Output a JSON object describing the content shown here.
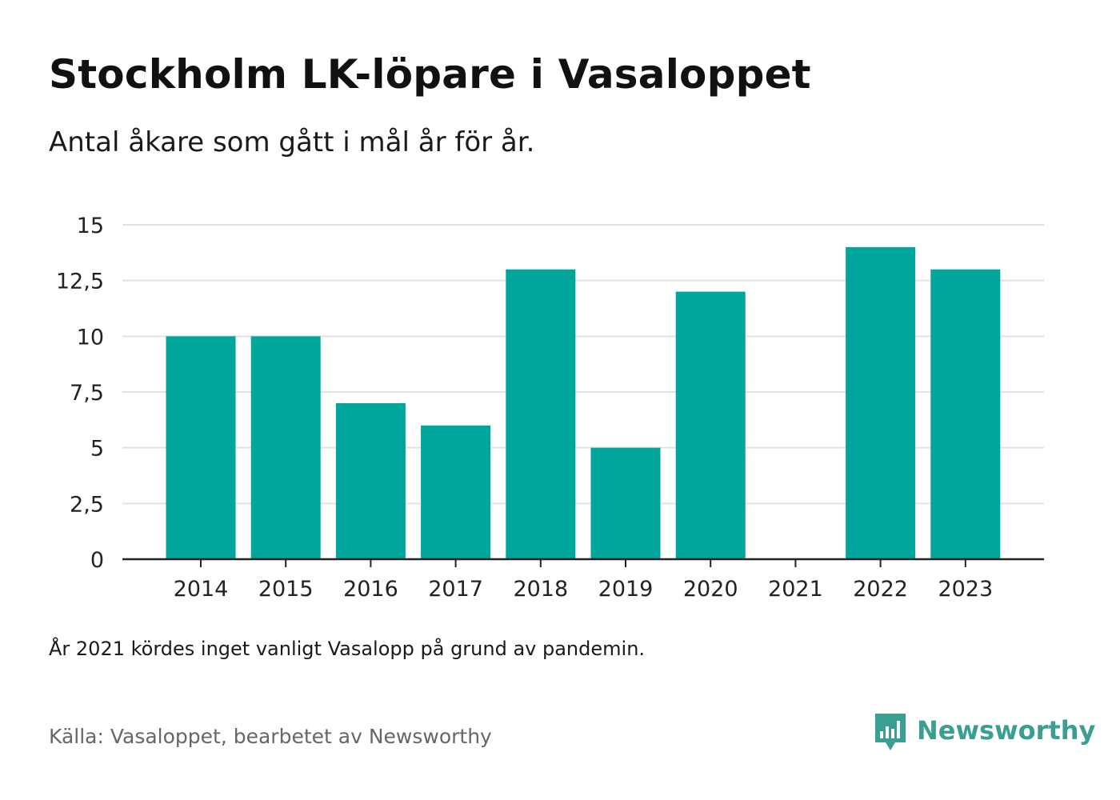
{
  "title": "Stockholm LK-löpare i Vasaloppet",
  "subtitle": "Antal åkare som gått i mål år för år.",
  "note": "År 2021 kördes inget vanligt Vasalopp på grund av pandemin.",
  "source": "Källa: Vasaloppet, bearbetet av Newsworthy",
  "brand": {
    "name": "Newsworthy",
    "icon": "newsworthy-logo-icon",
    "color": "#3a9e93"
  },
  "colors": {
    "bar": "#00a59c",
    "grid": "#e2e2e2",
    "axis": "#222222",
    "tick_text": "#222222"
  },
  "chart_data": {
    "type": "bar",
    "title": "Stockholm LK-löpare i Vasaloppet",
    "subtitle": "Antal åkare som gått i mål år för år.",
    "xlabel": "",
    "ylabel": "",
    "categories": [
      "2014",
      "2015",
      "2016",
      "2017",
      "2018",
      "2019",
      "2020",
      "2021",
      "2022",
      "2023"
    ],
    "values": [
      10,
      10,
      7,
      6,
      13,
      5,
      12,
      null,
      14,
      13
    ],
    "ylim": [
      0,
      15
    ],
    "yticks": [
      0,
      2.5,
      5,
      7.5,
      10,
      12.5,
      15
    ],
    "ytick_labels": [
      "0",
      "2,5",
      "5",
      "7,5",
      "10",
      "12,5",
      "15"
    ],
    "grid": true,
    "legend": "none"
  }
}
